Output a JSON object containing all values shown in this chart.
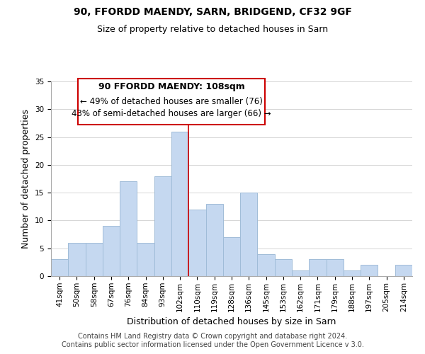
{
  "title1": "90, FFORDD MAENDY, SARN, BRIDGEND, CF32 9GF",
  "title2": "Size of property relative to detached houses in Sarn",
  "xlabel": "Distribution of detached houses by size in Sarn",
  "ylabel": "Number of detached properties",
  "bar_labels": [
    "41sqm",
    "50sqm",
    "58sqm",
    "67sqm",
    "76sqm",
    "84sqm",
    "93sqm",
    "102sqm",
    "110sqm",
    "119sqm",
    "128sqm",
    "136sqm",
    "145sqm",
    "153sqm",
    "162sqm",
    "171sqm",
    "179sqm",
    "188sqm",
    "197sqm",
    "205sqm",
    "214sqm"
  ],
  "bar_values": [
    3,
    6,
    6,
    9,
    17,
    6,
    18,
    26,
    12,
    13,
    7,
    15,
    4,
    3,
    1,
    3,
    3,
    1,
    2,
    0,
    2
  ],
  "bar_color": "#c5d8f0",
  "bar_edge_color": "#a0bcd8",
  "highlight_bar_index": 8,
  "highlight_line_color": "#cc0000",
  "ylim": [
    0,
    35
  ],
  "yticks": [
    0,
    5,
    10,
    15,
    20,
    25,
    30,
    35
  ],
  "annotation_title": "90 FFORDD MAENDY: 108sqm",
  "annotation_line1": "← 49% of detached houses are smaller (76)",
  "annotation_line2": "43% of semi-detached houses are larger (66) →",
  "annotation_box_edge": "#cc0000",
  "footer1": "Contains HM Land Registry data © Crown copyright and database right 2024.",
  "footer2": "Contains public sector information licensed under the Open Government Licence v 3.0.",
  "title_fontsize": 10,
  "subtitle_fontsize": 9,
  "axis_label_fontsize": 9,
  "tick_fontsize": 7.5,
  "annotation_title_fontsize": 9,
  "annotation_body_fontsize": 8.5,
  "footer_fontsize": 7
}
